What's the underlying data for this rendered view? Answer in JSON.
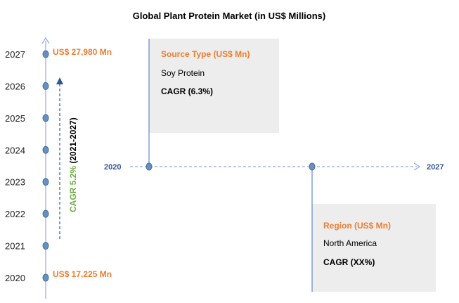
{
  "colors": {
    "axis": "#8FAADC",
    "marker_fill": "#6C8EBF",
    "marker_stroke": "#41719C",
    "arrow": "#2F5597",
    "value_text": "#ED7D31",
    "cagr_green": "#70AD47",
    "box_fill": "#EDEDED"
  },
  "chart_data": {
    "type": "timeline",
    "title": "Global Plant Protein Market (in US$ Millions)",
    "years": [
      "2027",
      "2026",
      "2025",
      "2024",
      "2023",
      "2022",
      "2021",
      "2020"
    ],
    "start_label": "US$ 17,225 Mn",
    "end_label": "US$ 27,980 Mn",
    "cagr": {
      "value": "CAGR 5.2%",
      "period": " (2021-2027)"
    },
    "timeline": {
      "start": "2020",
      "end": "2027"
    },
    "source_box": {
      "title": "Source Type (US$ Mn)",
      "item": "Soy Protein",
      "cagr": "CAGR (6.3%)"
    },
    "region_box": {
      "title": "Region (US$ Mn)",
      "item": "North America",
      "cagr": "CAGR (XX%)"
    }
  }
}
